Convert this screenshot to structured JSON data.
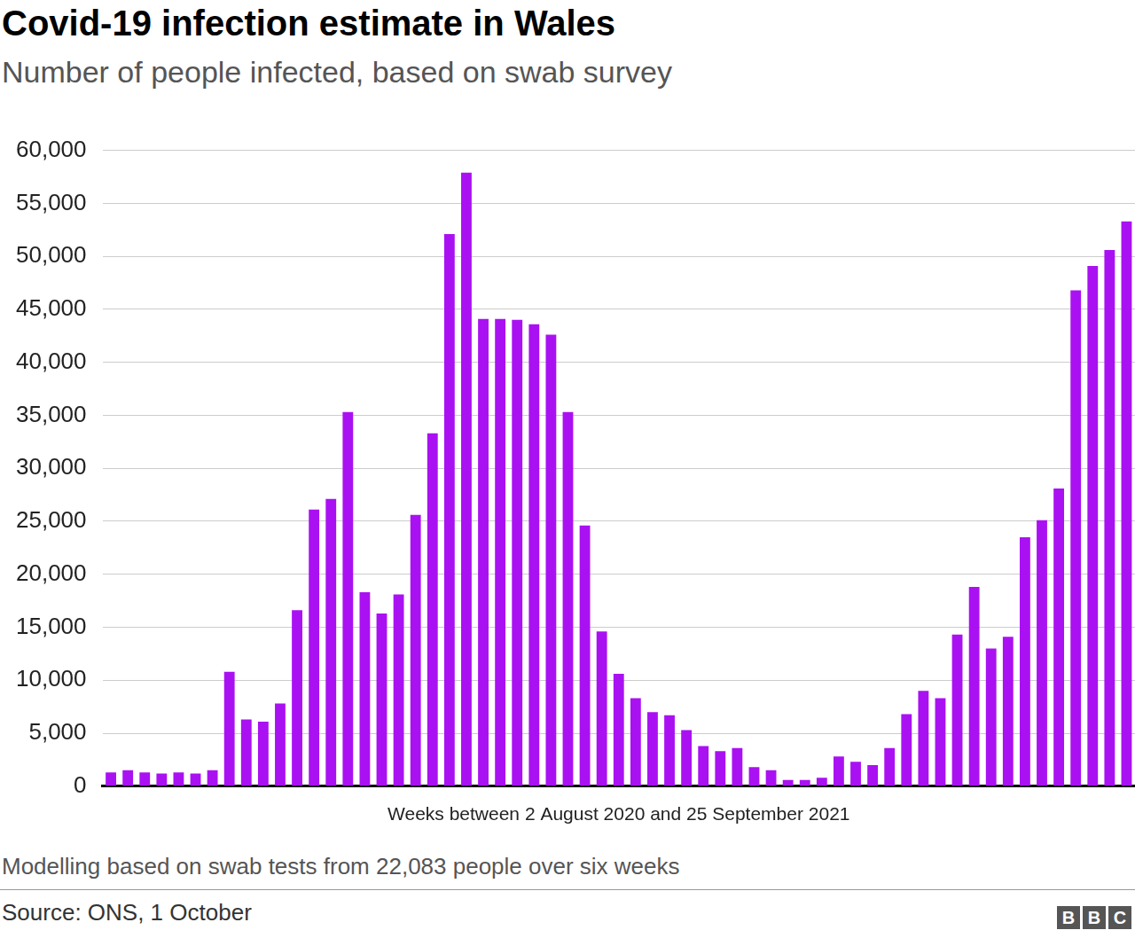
{
  "chart_data": {
    "type": "bar",
    "title": "Covid-19 infection estimate in Wales",
    "subtitle": "Number of people infected, based on swab survey",
    "x_label": "Weeks between 2 August 2020 and 25 September 2021",
    "footnote": "Modelling based on swab tests from 22,083 people over six weeks",
    "source": "Source: ONS, 1 October",
    "credit": "BBC",
    "categories": [
      null,
      null,
      null,
      null,
      null,
      null,
      null,
      null,
      null,
      null,
      null,
      null,
      null,
      null,
      null,
      null,
      null,
      null,
      null,
      null,
      null,
      null,
      null,
      null,
      null,
      null,
      null,
      null,
      null,
      null,
      null,
      null,
      null,
      null,
      null,
      null,
      null,
      null,
      null,
      null,
      null,
      null,
      null,
      null,
      null,
      null,
      null,
      null,
      null,
      null,
      null,
      null,
      null,
      null,
      null,
      null,
      null,
      null,
      null,
      null,
      null
    ],
    "values": [
      1300,
      1500,
      1300,
      1200,
      1300,
      1200,
      1500,
      10800,
      6300,
      6100,
      7800,
      16600,
      26100,
      27100,
      35300,
      18300,
      16300,
      18100,
      25600,
      33300,
      52100,
      57900,
      44100,
      44100,
      44000,
      43600,
      42600,
      35300,
      24600,
      14600,
      10600,
      8300,
      7000,
      6700,
      5300,
      3800,
      3300,
      3600,
      1800,
      1500,
      600,
      600,
      800,
      2800,
      2300,
      2000,
      3600,
      6800,
      9000,
      8300,
      14300,
      18800,
      13000,
      14100,
      23500,
      25100,
      28100,
      46800,
      49100,
      50600,
      53300
    ],
    "color": "#aa11f2",
    "ylim": [
      0,
      60000
    ],
    "yticks": [
      0,
      {
        "value": 5000,
        "label": "5,000"
      },
      {
        "value": 10000,
        "label": "10,000"
      },
      {
        "value": 15000,
        "label": "15,000"
      },
      {
        "value": 20000,
        "label": "20,000"
      },
      {
        "value": 25000,
        "label": "25,000"
      },
      {
        "value": 30000,
        "label": "30,000"
      },
      {
        "value": 35000,
        "label": "35,000"
      },
      {
        "value": 40000,
        "label": "40,000"
      },
      {
        "value": 45000,
        "label": "45,000"
      },
      {
        "value": 50000,
        "label": "50,000"
      },
      {
        "value": 55000,
        "label": "55,000"
      },
      {
        "value": 60000,
        "label": "60,000"
      }
    ],
    "grid": true,
    "tick_labels": "y"
  }
}
